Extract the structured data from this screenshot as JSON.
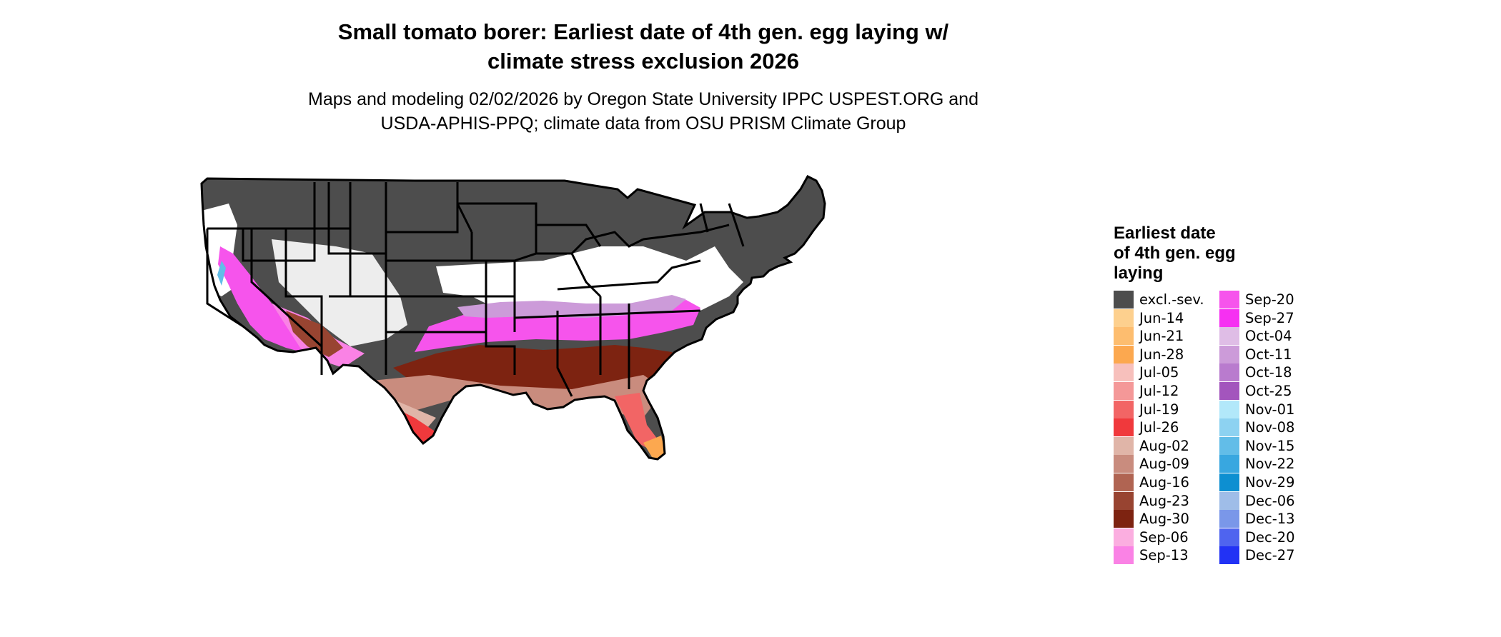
{
  "title": {
    "line1": "Small tomato borer: Earliest date of 4th gen. egg laying w/",
    "line2": "climate stress exclusion 2026"
  },
  "subtitle": {
    "line1": "Maps and modeling 02/02/2026 by Oregon State University IPPC USPEST.ORG and",
    "line2": "USDA-APHIS-PPQ; climate data from OSU PRISM Climate Group"
  },
  "legend": {
    "title": [
      "Earliest date",
      "of 4th gen. egg",
      "laying"
    ],
    "col1": [
      {
        "label": "excl.-sev.",
        "color": "#4d4d4d"
      },
      {
        "label": "Jun-14",
        "color": "#fdd08e"
      },
      {
        "label": "Jun-21",
        "color": "#fdbd6f"
      },
      {
        "label": "Jun-28",
        "color": "#fca84f"
      },
      {
        "label": "Jul-05",
        "color": "#f7c0bc"
      },
      {
        "label": "Jul-12",
        "color": "#f49898"
      },
      {
        "label": "Jul-19",
        "color": "#f26565"
      },
      {
        "label": "Jul-26",
        "color": "#f0393c"
      },
      {
        "label": "Aug-02",
        "color": "#e0b5a8"
      },
      {
        "label": "Aug-09",
        "color": "#c98c7e"
      },
      {
        "label": "Aug-16",
        "color": "#b06452"
      },
      {
        "label": "Aug-23",
        "color": "#984431"
      },
      {
        "label": "Aug-30",
        "color": "#7d2311"
      },
      {
        "label": "Sep-06",
        "color": "#fbaee0"
      },
      {
        "label": "Sep-13",
        "color": "#fa82e5"
      }
    ],
    "col2": [
      {
        "label": "Sep-20",
        "color": "#f654ec"
      },
      {
        "label": "Sep-27",
        "color": "#f630f2"
      },
      {
        "label": "Oct-04",
        "color": "#dfbde6"
      },
      {
        "label": "Oct-11",
        "color": "#cc9bd9"
      },
      {
        "label": "Oct-18",
        "color": "#b97bce"
      },
      {
        "label": "Oct-25",
        "color": "#a355bd"
      },
      {
        "label": "Nov-01",
        "color": "#b2e8fa"
      },
      {
        "label": "Nov-08",
        "color": "#8dd2f1"
      },
      {
        "label": "Nov-15",
        "color": "#62bde8"
      },
      {
        "label": "Nov-22",
        "color": "#38a7e0"
      },
      {
        "label": "Nov-29",
        "color": "#0d8fd1"
      },
      {
        "label": "Dec-06",
        "color": "#9fbde8"
      },
      {
        "label": "Dec-13",
        "color": "#7a97e9"
      },
      {
        "label": "Dec-20",
        "color": "#4f64ef"
      },
      {
        "label": "Dec-27",
        "color": "#2232f5"
      }
    ]
  },
  "map": {
    "region": "contiguous United States",
    "outline_color": "#000000",
    "colors": {
      "excluded": "#4d4d4d",
      "not_reached": "#ffffff",
      "early_summer": "#fca84f",
      "july": "#f0393c",
      "august_light": "#e0b5a8",
      "august_mid": "#c98c7e",
      "august_dark": "#7d2311",
      "september": "#f654ec",
      "september_light": "#fa82e5",
      "october": "#cc9bd9",
      "november": "#62bde8"
    }
  }
}
